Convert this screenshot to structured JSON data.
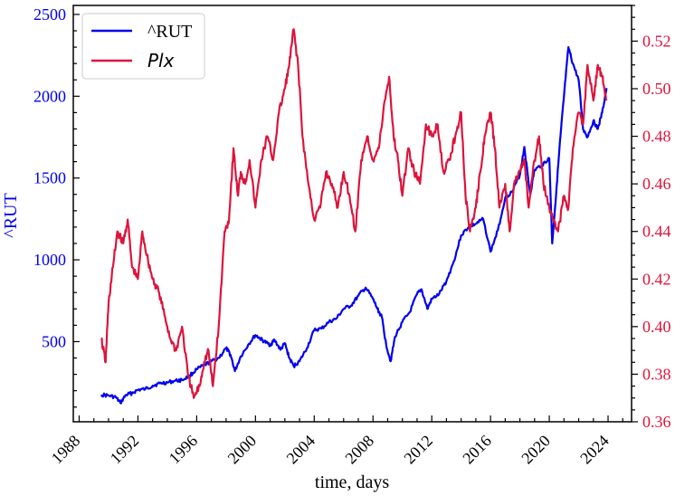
{
  "chart_data": {
    "type": "line",
    "xlabel": "time, days",
    "x_ticks": [
      "1988",
      "1992",
      "1996",
      "2000",
      "2004",
      "2008",
      "2012",
      "2016",
      "2020",
      "2024"
    ],
    "xlim": [
      1987.6,
      2025.6
    ],
    "left_axis": {
      "label": "^RUT",
      "color": "#0000ee",
      "ylim": [
        10,
        2555
      ],
      "ticks": [
        "500",
        "1000",
        "1500",
        "2000",
        "2500"
      ]
    },
    "right_axis": {
      "label": "",
      "color": "#dc143c",
      "ylim": [
        0.36,
        0.535
      ],
      "ticks": [
        "0.36",
        "0.38",
        "0.40",
        "0.42",
        "0.44",
        "0.46",
        "0.48",
        "0.50",
        "0.52"
      ]
    },
    "legend": {
      "placement": "top-left",
      "entries": [
        "^RUT",
        "Plx"
      ]
    },
    "series": [
      {
        "name": "^RUT",
        "axis": "left",
        "color": "#0000ee",
        "x": [
          1989.5,
          1990.0,
          1990.5,
          1990.8,
          1991.2,
          1991.6,
          1992.0,
          1992.5,
          1993.0,
          1993.5,
          1994.0,
          1994.5,
          1995.0,
          1995.5,
          1996.0,
          1996.5,
          1997.0,
          1997.5,
          1998.0,
          1998.3,
          1998.6,
          1999.0,
          1999.5,
          2000.0,
          2000.3,
          2000.6,
          2001.0,
          2001.3,
          2001.7,
          2002.0,
          2002.3,
          2002.6,
          2003.0,
          2003.5,
          2004.0,
          2004.5,
          2005.0,
          2005.5,
          2006.0,
          2006.5,
          2007.0,
          2007.5,
          2008.0,
          2008.3,
          2008.6,
          2008.9,
          2009.2,
          2009.5,
          2010.0,
          2010.5,
          2011.0,
          2011.3,
          2011.7,
          2012.0,
          2012.5,
          2013.0,
          2013.5,
          2014.0,
          2014.5,
          2015.0,
          2015.5,
          2016.0,
          2016.5,
          2017.0,
          2017.5,
          2018.0,
          2018.3,
          2018.7,
          2019.0,
          2019.5,
          2020.0,
          2020.2,
          2020.5,
          2020.8,
          2021.0,
          2021.3,
          2021.6,
          2022.0,
          2022.3,
          2022.6,
          2023.0,
          2023.3,
          2023.6,
          2023.9
        ],
        "values": [
          175,
          170,
          160,
          125,
          175,
          185,
          205,
          210,
          230,
          245,
          250,
          260,
          265,
          290,
          330,
          355,
          380,
          400,
          460,
          420,
          320,
          410,
          480,
          540,
          520,
          500,
          480,
          510,
          450,
          490,
          400,
          350,
          380,
          460,
          570,
          580,
          620,
          640,
          700,
          720,
          780,
          830,
          760,
          700,
          650,
          480,
          380,
          530,
          620,
          680,
          790,
          820,
          700,
          760,
          790,
          870,
          990,
          1150,
          1200,
          1220,
          1250,
          1050,
          1180,
          1380,
          1420,
          1520,
          1690,
          1400,
          1550,
          1580,
          1620,
          1100,
          1450,
          1800,
          2000,
          2300,
          2200,
          2100,
          1800,
          1750,
          1850,
          1800,
          1900,
          2050
        ]
      },
      {
        "name": "Plx",
        "axis": "right",
        "color": "#dc143c",
        "x": [
          1989.5,
          1989.8,
          1990.0,
          1990.3,
          1990.6,
          1991.0,
          1991.3,
          1991.6,
          1992.0,
          1992.3,
          1992.6,
          1993.0,
          1993.4,
          1993.8,
          1994.2,
          1994.6,
          1995.0,
          1995.4,
          1995.8,
          1996.2,
          1996.5,
          1996.8,
          1997.1,
          1997.5,
          1997.9,
          1998.2,
          1998.5,
          1998.8,
          1999.0,
          1999.3,
          1999.6,
          2000.0,
          2000.4,
          2000.8,
          2001.2,
          2001.6,
          2002.0,
          2002.3,
          2002.6,
          2002.9,
          2003.2,
          2003.6,
          2004.0,
          2004.4,
          2004.8,
          2005.2,
          2005.6,
          2006.0,
          2006.4,
          2006.8,
          2007.2,
          2007.6,
          2008.0,
          2008.4,
          2008.8,
          2009.1,
          2009.4,
          2009.7,
          2010.0,
          2010.4,
          2010.8,
          2011.2,
          2011.6,
          2012.0,
          2012.4,
          2012.8,
          2013.2,
          2013.6,
          2014.0,
          2014.3,
          2014.6,
          2015.0,
          2015.3,
          2015.6,
          2016.0,
          2016.3,
          2016.6,
          2017.0,
          2017.3,
          2017.6,
          2018.0,
          2018.3,
          2018.6,
          2019.0,
          2019.3,
          2019.6,
          2020.0,
          2020.3,
          2020.6,
          2021.0,
          2021.3,
          2021.6,
          2022.0,
          2022.3,
          2022.6,
          2023.0,
          2023.3,
          2023.6,
          2023.9
        ],
        "values": [
          0.395,
          0.385,
          0.41,
          0.425,
          0.44,
          0.435,
          0.445,
          0.425,
          0.42,
          0.44,
          0.43,
          0.42,
          0.415,
          0.405,
          0.395,
          0.39,
          0.4,
          0.38,
          0.37,
          0.375,
          0.385,
          0.39,
          0.375,
          0.4,
          0.44,
          0.445,
          0.475,
          0.455,
          0.465,
          0.46,
          0.47,
          0.45,
          0.47,
          0.48,
          0.47,
          0.49,
          0.5,
          0.51,
          0.525,
          0.51,
          0.48,
          0.46,
          0.445,
          0.45,
          0.465,
          0.46,
          0.45,
          0.465,
          0.455,
          0.44,
          0.47,
          0.48,
          0.47,
          0.475,
          0.495,
          0.505,
          0.48,
          0.47,
          0.455,
          0.475,
          0.465,
          0.46,
          0.485,
          0.48,
          0.485,
          0.465,
          0.47,
          0.48,
          0.49,
          0.455,
          0.44,
          0.45,
          0.465,
          0.48,
          0.49,
          0.475,
          0.45,
          0.46,
          0.44,
          0.46,
          0.465,
          0.47,
          0.45,
          0.47,
          0.48,
          0.46,
          0.45,
          0.445,
          0.44,
          0.455,
          0.45,
          0.475,
          0.49,
          0.485,
          0.51,
          0.495,
          0.51,
          0.505,
          0.495
        ]
      }
    ]
  }
}
